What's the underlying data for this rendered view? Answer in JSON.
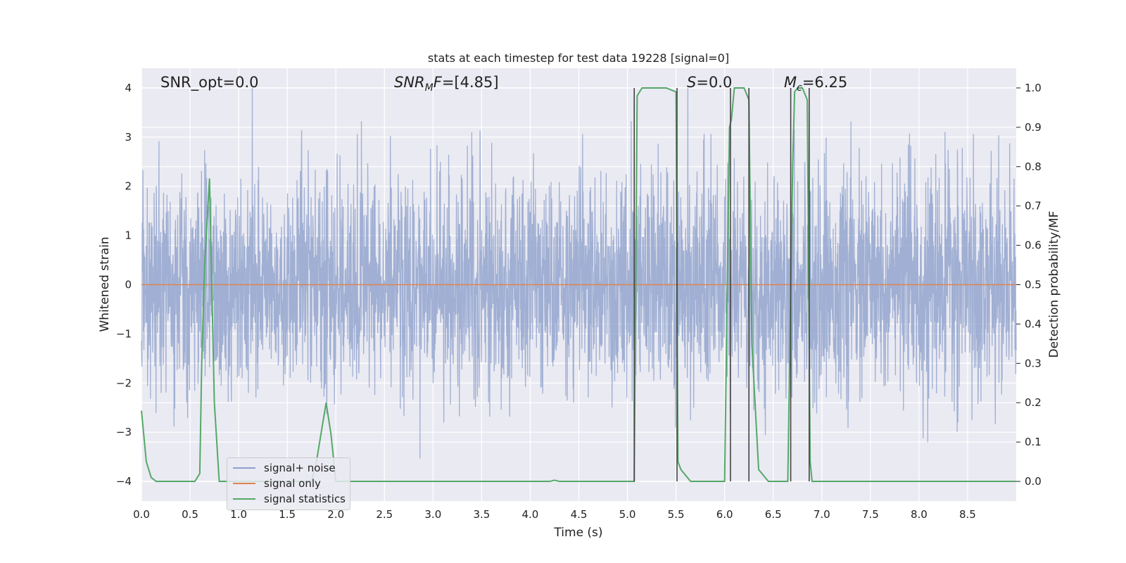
{
  "chart_data": {
    "type": "line",
    "title": "stats at each timestep for test data 19228 [signal=0]",
    "xlabel": "Time (s)",
    "ylabel": "Whitened strain",
    "y2label": "Detection probability/MF",
    "xlim": [
      0.0,
      9.0
    ],
    "ylim": [
      -4.4,
      4.4
    ],
    "y2lim": [
      -0.05,
      1.05
    ],
    "x_ticks": [
      "0.0",
      "0.5",
      "1.0",
      "1.5",
      "2.0",
      "2.5",
      "3.0",
      "3.5",
      "4.0",
      "4.5",
      "5.0",
      "5.5",
      "6.0",
      "6.5",
      "7.0",
      "7.5",
      "8.0",
      "8.5"
    ],
    "y_ticks": [
      "−4",
      "−3",
      "−2",
      "−1",
      "0",
      "1",
      "2",
      "3",
      "4"
    ],
    "y2_ticks": [
      "0.0",
      "0.1",
      "0.2",
      "0.3",
      "0.4",
      "0.5",
      "0.6",
      "0.7",
      "0.8",
      "0.9",
      "1.0"
    ],
    "grid": true,
    "legend_position": "lower-left",
    "annotations": [
      {
        "label": "SNR_opt=0.0",
        "x": 0.2,
        "y": 4.1
      },
      {
        "label": "SNR_MF=[4.85]",
        "x": 2.6,
        "y": 4.1
      },
      {
        "label": "S=0.0",
        "x": 5.62,
        "y": 4.1
      },
      {
        "label": "M_c=6.25",
        "x": 6.62,
        "y": 4.1
      }
    ],
    "vertical_lines_x": [
      5.07,
      5.51,
      6.06,
      6.25,
      6.68,
      6.87
    ],
    "series": [
      {
        "name": "signal+ noise",
        "color": "#8da0cb",
        "description": "whitened noise, roughly within ±2.5 with peaks to ±4"
      },
      {
        "name": "signal only",
        "color": "#dd8452",
        "values_constant": 0.0
      },
      {
        "name": "signal statistics",
        "color": "#55a868",
        "x": [
          0.0,
          0.05,
          0.1,
          0.15,
          0.2,
          0.3,
          0.4,
          0.5,
          0.55,
          0.6,
          0.62,
          0.65,
          0.7,
          0.75,
          0.8,
          0.9,
          1.0,
          1.5,
          1.75,
          1.8,
          1.9,
          1.95,
          2.0,
          2.1,
          2.5,
          3.0,
          3.5,
          4.0,
          4.2,
          4.25,
          4.3,
          4.5,
          5.0,
          5.07,
          5.1,
          5.15,
          5.2,
          5.3,
          5.4,
          5.5,
          5.52,
          5.55,
          5.65,
          5.8,
          6.0,
          6.05,
          6.07,
          6.1,
          6.15,
          6.2,
          6.25,
          6.28,
          6.35,
          6.45,
          6.55,
          6.6,
          6.65,
          6.7,
          6.72,
          6.75,
          6.8,
          6.85,
          6.88,
          6.9,
          6.95,
          7.0,
          7.5,
          8.0,
          8.5,
          9.0
        ],
        "y2": [
          0.18,
          0.05,
          0.01,
          0.0,
          0.0,
          0.0,
          0.0,
          0.0,
          0.0,
          0.02,
          0.3,
          0.55,
          0.77,
          0.2,
          0.0,
          0.0,
          0.0,
          0.0,
          0.0,
          0.05,
          0.2,
          0.12,
          0.0,
          0.0,
          0.0,
          0.0,
          0.0,
          0.0,
          0.0,
          0.003,
          0.0,
          0.0,
          0.0,
          0.0,
          0.98,
          1.0,
          1.0,
          1.0,
          1.0,
          0.99,
          0.05,
          0.03,
          0.0,
          0.0,
          0.0,
          0.9,
          0.92,
          1.0,
          1.0,
          1.0,
          0.97,
          0.35,
          0.03,
          0.0,
          0.0,
          0.0,
          0.0,
          0.8,
          0.99,
          1.0,
          1.0,
          0.97,
          0.05,
          0.0,
          0.0,
          0.0,
          0.0,
          0.0,
          0.0,
          0.0
        ]
      }
    ]
  },
  "legend": {
    "items": [
      {
        "label": "signal+ noise",
        "color": "#8da0cb"
      },
      {
        "label": "signal only",
        "color": "#dd8452"
      },
      {
        "label": "signal statistics",
        "color": "#55a868"
      }
    ]
  }
}
